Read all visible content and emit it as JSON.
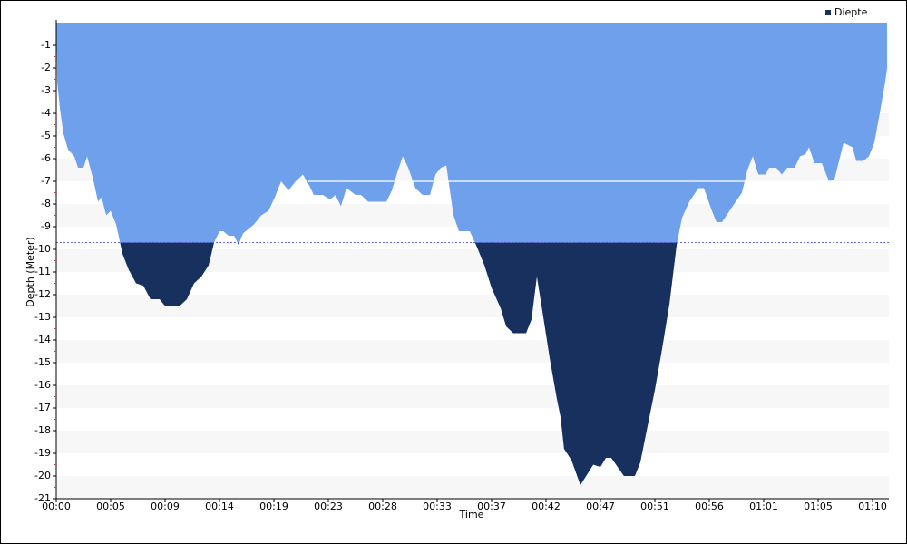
{
  "chart_data": {
    "type": "area",
    "y_label": "Depth (Meter)",
    "x_label": "Time",
    "legend": "Diepte",
    "legend_position": "upper right",
    "x": [
      0,
      5,
      19,
      37,
      61,
      93,
      112,
      140,
      159,
      187,
      215,
      233,
      257,
      280,
      308,
      341,
      373,
      411,
      448,
      485,
      532,
      560,
      635,
      672,
      709,
      747,
      784,
      812,
      840,
      859,
      887,
      915,
      938,
      961,
      989,
      1017,
      1055,
      1092,
      1125,
      1157,
      1195,
      1232,
      1269,
      1297,
      1325,
      1372,
      1409,
      1437,
      1465,
      1493,
      1540,
      1568,
      1605,
      1699,
      1727,
      1755,
      1783,
      1811,
      1848,
      1885,
      1923,
      1951,
      1979,
      2007,
      2044,
      2072,
      2128,
      2165,
      2203,
      2240,
      2287,
      2315,
      2352,
      2417,
      2445,
      2473,
      2501,
      2539,
      2576,
      2595,
      2613,
      2651,
      2697,
      2763,
      2800,
      2828,
      2856,
      2921,
      2977,
      3005,
      3033,
      3080,
      3117,
      3155,
      3192,
      3220,
      3257,
      3304,
      3332,
      3369,
      3397,
      3425,
      3472,
      3528,
      3556,
      3584,
      3612,
      3649,
      3668,
      3705,
      3733,
      3761,
      3799,
      3827,
      3855,
      3873,
      3901,
      3939,
      3976,
      4004,
      4051,
      4097,
      4116,
      4153,
      4181,
      4209,
      4237,
      4265,
      4275
    ],
    "values": [
      0,
      -2.6,
      -3.8,
      -4.9,
      -5.6,
      -5.9,
      -6.4,
      -6.4,
      -5.9,
      -6.8,
      -7.9,
      -7.7,
      -8.5,
      -8.3,
      -8.9,
      -10.2,
      -10.9,
      -11.5,
      -11.6,
      -12.2,
      -12.2,
      -12.5,
      -12.5,
      -12.2,
      -11.5,
      -11.2,
      -10.7,
      -9.7,
      -9.2,
      -9.2,
      -9.4,
      -9.4,
      -9.8,
      -9.3,
      -9.1,
      -8.9,
      -8.5,
      -8.3,
      -7.7,
      -7.0,
      -7.4,
      -7.0,
      -6.7,
      -7.1,
      -7.6,
      -7.6,
      -7.8,
      -7.6,
      -8.1,
      -7.3,
      -7.6,
      -7.6,
      -7.9,
      -7.9,
      -7.4,
      -6.6,
      -5.9,
      -6.4,
      -7.3,
      -7.6,
      -7.6,
      -6.7,
      -6.4,
      -6.3,
      -8.5,
      -9.2,
      -9.2,
      -9.9,
      -10.7,
      -11.7,
      -12.6,
      -13.4,
      -13.7,
      -13.7,
      -13.1,
      -11.2,
      -12.7,
      -14.8,
      -16.6,
      -17.4,
      -18.8,
      -19.3,
      -20.4,
      -19.5,
      -19.6,
      -19.2,
      -19.2,
      -20.0,
      -20.0,
      -19.4,
      -18.2,
      -16.2,
      -14.4,
      -12.4,
      -9.8,
      -8.6,
      -7.9,
      -7.3,
      -7.3,
      -8.2,
      -8.8,
      -8.8,
      -8.2,
      -7.5,
      -6.5,
      -5.9,
      -6.7,
      -6.7,
      -6.4,
      -6.4,
      -6.7,
      -6.4,
      -6.4,
      -5.9,
      -5.8,
      -5.5,
      -6.2,
      -6.2,
      -7.0,
      -6.9,
      -5.3,
      -5.5,
      -6.1,
      -6.1,
      -5.9,
      -5.3,
      -4.0,
      -2.6,
      -2.0
    ],
    "color": "#6fa0eb",
    "deep_color": "#17305e",
    "threshold": -9.7,
    "reference_line": {
      "y": -7,
      "x": [
        1297,
        3981
      ]
    },
    "xlim": [
      0,
      4284
    ],
    "ylim": [
      -21,
      0
    ],
    "xticks": [
      {
        "value": 0,
        "label": "00:00"
      },
      {
        "value": 280,
        "label": "00:05"
      },
      {
        "value": 560,
        "label": "00:09"
      },
      {
        "value": 840,
        "label": "00:14"
      },
      {
        "value": 1120,
        "label": "00:19"
      },
      {
        "value": 1400,
        "label": "00:23"
      },
      {
        "value": 1680,
        "label": "00:28"
      },
      {
        "value": 1960,
        "label": "00:33"
      },
      {
        "value": 2240,
        "label": "00:37"
      },
      {
        "value": 2520,
        "label": "00:42"
      },
      {
        "value": 2800,
        "label": "00:47"
      },
      {
        "value": 3080,
        "label": "00:51"
      },
      {
        "value": 3360,
        "label": "00:56"
      },
      {
        "value": 3640,
        "label": "01:01"
      },
      {
        "value": 3920,
        "label": "01:05"
      },
      {
        "value": 4200,
        "label": "01:10"
      }
    ],
    "yticks": [
      -21,
      -20,
      -19,
      -18,
      -17,
      -16,
      -15,
      -14,
      -13,
      -12,
      -11,
      -10,
      -9,
      -8,
      -7,
      -6,
      -5,
      -4,
      -3,
      -2,
      -1
    ]
  }
}
